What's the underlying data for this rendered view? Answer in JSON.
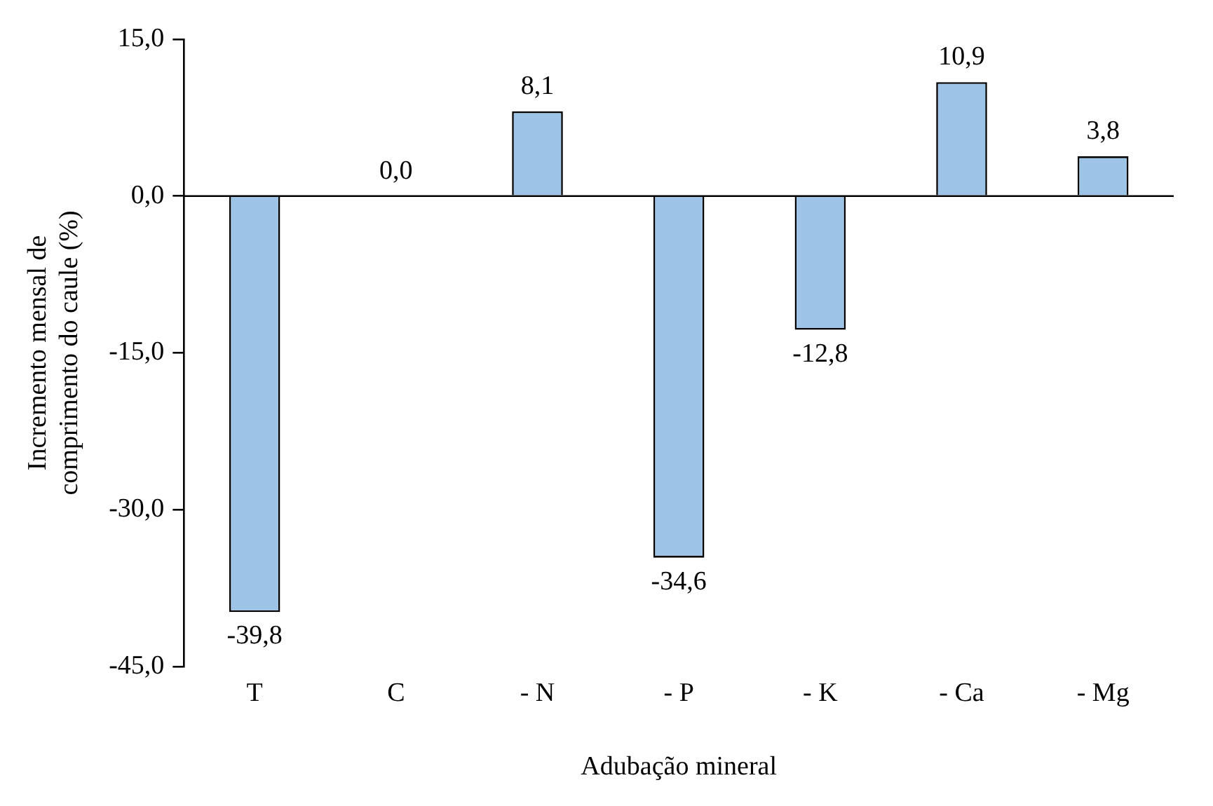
{
  "chart_data": {
    "type": "bar",
    "xlabel": "Adubação mineral",
    "ylabel": "Incremento mensal de comprimento do caule (%)",
    "categories": [
      "T",
      "C",
      "- N",
      "- P",
      "- K",
      "- Ca",
      "- Mg"
    ],
    "values": [
      -39.8,
      0.0,
      8.1,
      -34.6,
      -12.8,
      10.9,
      3.8
    ],
    "value_labels": [
      "-39,8",
      "0,0",
      "8,1",
      "-34,6",
      "-12,8",
      "10,9",
      "3,8"
    ],
    "color": "#9dc3e6",
    "ylim": [
      -45,
      15
    ],
    "yticks": [
      {
        "value": -45,
        "label": "-45,0"
      },
      {
        "value": -30,
        "label": "-30,0"
      },
      {
        "value": -15,
        "label": "-15,0"
      },
      {
        "value": 0,
        "label": "0,0"
      },
      {
        "value": 15,
        "label": "15,0"
      }
    ],
    "ref_lines": [
      {
        "axis": "y",
        "value": 0,
        "color": "#000000"
      }
    ],
    "grid": false,
    "legend": false
  }
}
